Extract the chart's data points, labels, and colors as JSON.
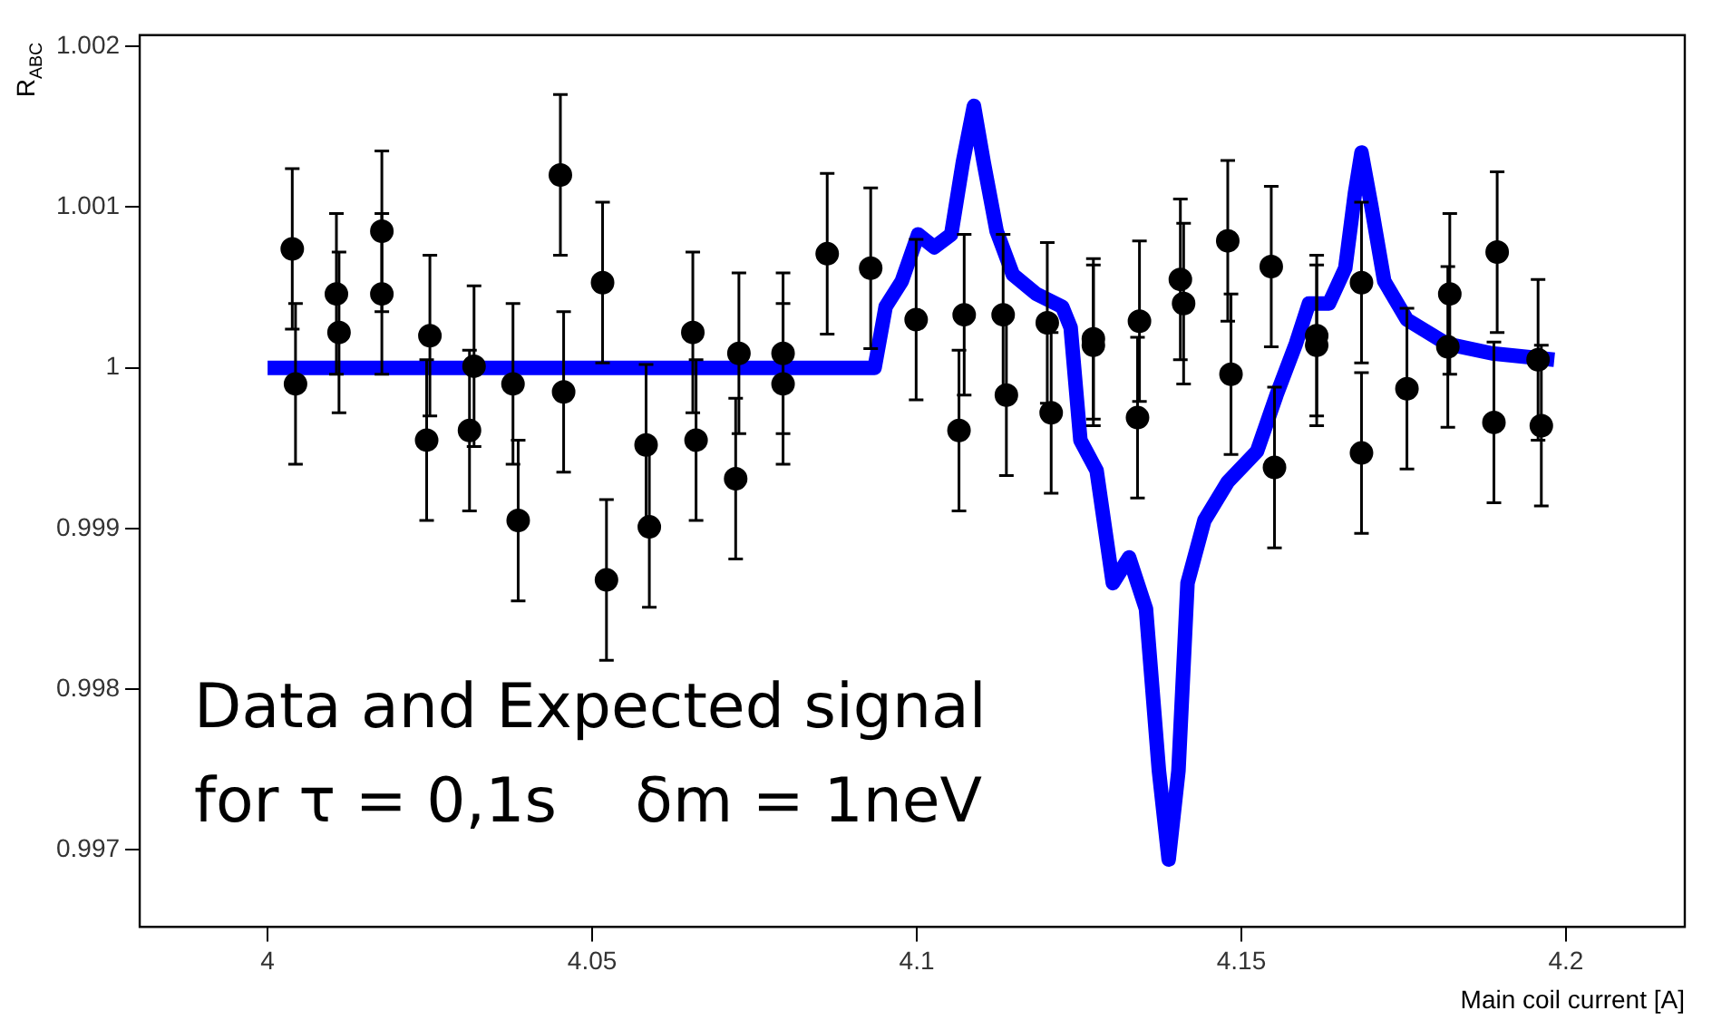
{
  "chart_data": {
    "type": "scatter",
    "xlabel": "Main coil current [A]",
    "ylabel": "R$_{ABC}$",
    "xlim": [
      3.9803,
      4.2183
    ],
    "ylim": [
      0.99652,
      1.00207
    ],
    "xticks": [
      4,
      4.05,
      4.1,
      4.15,
      4.2
    ],
    "yticks": [
      0.997,
      0.998,
      0.999,
      1,
      1.001,
      1.002
    ],
    "grid": false,
    "legend": false,
    "marker": "circle",
    "annotations": [
      "Data and Expected signal",
      "for τ = 0,1s    δm = 1neV"
    ],
    "series": [
      {
        "color": "#000000",
        "x": [
          4.0038,
          4.0043,
          4.0106,
          4.011,
          4.0176,
          4.0176,
          4.025,
          4.0245,
          4.0318,
          4.0311,
          4.0378,
          4.0386,
          4.0451,
          4.0456,
          4.0516,
          4.0522,
          4.0583,
          4.0588,
          4.0655,
          4.066,
          4.0726,
          4.0721,
          4.0794,
          4.0794,
          4.0862,
          4.0929,
          4.0999,
          4.1073,
          4.1065,
          4.1133,
          4.1138,
          4.1201,
          4.1207,
          4.1272,
          4.1272,
          4.1343,
          4.134,
          4.1406,
          4.1411,
          4.1479,
          4.1484,
          4.1546,
          4.1551,
          4.1616,
          4.1616,
          4.1685,
          4.1685,
          4.1755,
          4.1821,
          4.1818,
          4.1894,
          4.1889,
          4.1957,
          4.1962
        ],
        "values": [
          1.00074,
          0.9999,
          1.00046,
          1.00022,
          1.00085,
          1.00046,
          1.0002,
          0.99955,
          1.00001,
          0.99961,
          0.9999,
          0.99905,
          1.0012,
          0.99985,
          1.00053,
          0.99868,
          0.99952,
          0.99901,
          1.00022,
          0.99955,
          1.00009,
          0.99931,
          1.00009,
          0.9999,
          1.00071,
          1.00062,
          1.0003,
          1.00033,
          0.99961,
          1.00033,
          0.99983,
          1.00028,
          0.99972,
          1.00018,
          1.00014,
          1.00029,
          0.99969,
          1.00055,
          1.0004,
          1.00079,
          0.99996,
          1.00063,
          0.99938,
          1.0002,
          1.00014,
          1.00053,
          0.99947,
          0.99987,
          1.00046,
          1.00013,
          1.00072,
          0.99966,
          1.00005,
          0.99964
        ],
        "errors": [
          0.0005,
          0.0005,
          0.0005,
          0.0005,
          0.0005,
          0.0005,
          0.0005,
          0.0005,
          0.0005,
          0.0005,
          0.0005,
          0.0005,
          0.0005,
          0.0005,
          0.0005,
          0.0005,
          0.0005,
          0.0005,
          0.0005,
          0.0005,
          0.0005,
          0.0005,
          0.0005,
          0.0005,
          0.0005,
          0.0005,
          0.0005,
          0.0005,
          0.0005,
          0.0005,
          0.0005,
          0.0005,
          0.0005,
          0.0005,
          0.0005,
          0.0005,
          0.0005,
          0.0005,
          0.0005,
          0.0005,
          0.0005,
          0.0005,
          0.0005,
          0.0005,
          0.0005,
          0.0005,
          0.0005,
          0.0005,
          0.0005,
          0.0005,
          0.0005,
          0.0005,
          0.0005,
          0.0005
        ]
      },
      {
        "type": "line",
        "color": "#0000ff",
        "marker": "none",
        "line_style": "solid",
        "x": [
          4,
          4.0935,
          4.0952,
          4.0977,
          4.1002,
          4.1027,
          4.1053,
          4.1071,
          4.1088,
          4.1103,
          4.1123,
          4.1148,
          4.1184,
          4.1224,
          4.1237,
          4.1252,
          4.1277,
          4.1302,
          4.1327,
          4.1353,
          4.1373,
          4.1388,
          4.1403,
          4.1417,
          4.1443,
          4.1479,
          4.1524,
          4.1554,
          4.1584,
          4.1604,
          4.1635,
          4.166,
          4.1675,
          4.1685,
          4.17,
          4.172,
          4.1755,
          4.1816,
          4.1886,
          4.1982
        ],
        "values": [
          1.0,
          1.0,
          1.00038,
          1.00054,
          1.00083,
          1.00075,
          1.00083,
          1.00128,
          1.00163,
          1.00128,
          1.00085,
          1.00058,
          1.00046,
          1.00038,
          1.00025,
          0.99955,
          0.99936,
          0.99866,
          0.99882,
          0.9985,
          0.99749,
          0.99694,
          0.99749,
          0.99866,
          0.99905,
          0.99929,
          0.99948,
          0.99983,
          1.00015,
          1.0004,
          1.0004,
          1.00062,
          1.00109,
          1.00134,
          1.00101,
          1.00054,
          1.0003,
          1.00015,
          1.00009,
          1.00005
        ]
      }
    ]
  }
}
